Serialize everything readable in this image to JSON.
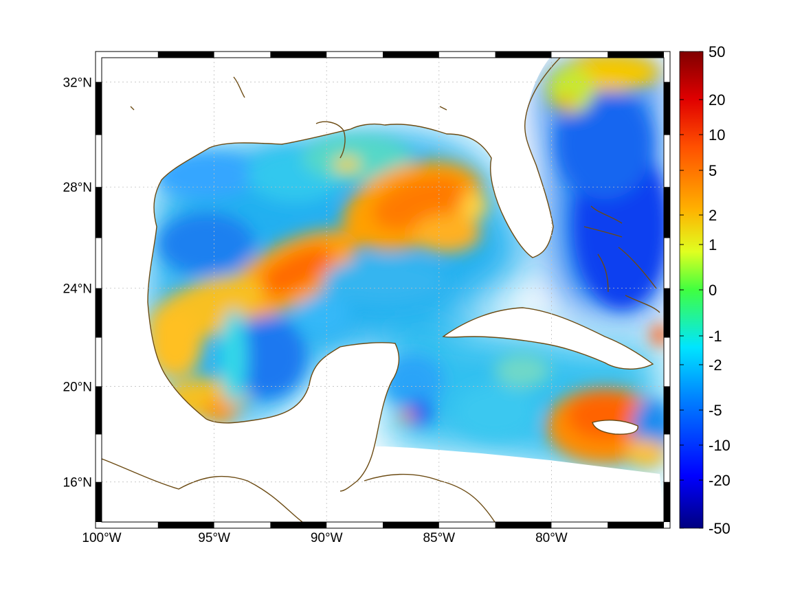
{
  "map": {
    "projection": "mercator",
    "lon_range": [
      -100,
      -75
    ],
    "lat_range": [
      14.3,
      32.9
    ],
    "graticule": "dotted",
    "x_ticks": [
      {
        "value": -100,
        "label": "100°W"
      },
      {
        "value": -95,
        "label": "95°W"
      },
      {
        "value": -90,
        "label": "90°W"
      },
      {
        "value": -85,
        "label": "85°W"
      },
      {
        "value": -80,
        "label": "80°W"
      }
    ],
    "y_ticks": [
      {
        "value": 32,
        "label": "32°N"
      },
      {
        "value": 28,
        "label": "28°N"
      },
      {
        "value": 24,
        "label": "24°N"
      },
      {
        "value": 20,
        "label": "20°N"
      },
      {
        "value": 16,
        "label": "16°N"
      }
    ],
    "coastline_color": "#6b4a12",
    "frame_style": "alternating black/white border"
  },
  "colorbar": {
    "colormap": "jet",
    "scale": "nonlinear (symmetric log-like)",
    "tick_labels": [
      "50",
      "20",
      "10",
      "5",
      "2",
      "1",
      "0",
      "-1",
      "-2",
      "-5",
      "-10",
      "-20",
      "-50"
    ],
    "min": -50,
    "max": 50
  },
  "field_features": [
    {
      "region": "central Gulf, ~27°N 86°W",
      "value": 5
    },
    {
      "region": "western Gulf, ~25°N 91°W",
      "value": 5
    },
    {
      "region": "south of Jamaica / Caribbean",
      "value": 5
    },
    {
      "region": "Texas–Mexico coast, ~19°N 95°W",
      "value": 3
    },
    {
      "region": "eastern Bahamas, ~26°N 76°W",
      "value": -12
    },
    {
      "region": "northern Gulf shelf",
      "value": -4
    }
  ]
}
